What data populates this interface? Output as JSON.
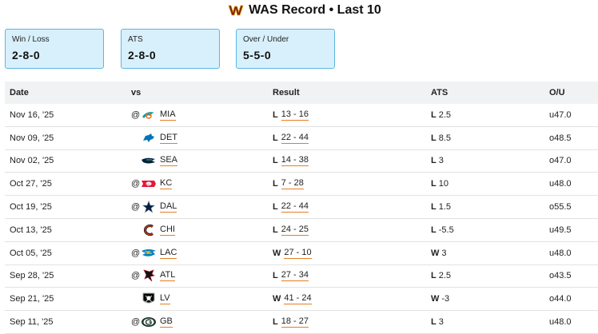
{
  "header": {
    "team": "WAS",
    "title": "WAS Record • Last 10",
    "logo_icon": "commanders-logo-icon"
  },
  "stats": [
    {
      "label": "Win / Loss",
      "value": "2-8-0"
    },
    {
      "label": "ATS",
      "value": "2-8-0"
    },
    {
      "label": "Over / Under",
      "value": "5-5-0"
    }
  ],
  "table": {
    "columns": [
      "Date",
      "vs",
      "Result",
      "ATS",
      "O/U"
    ],
    "rows": [
      {
        "date": "Nov 16, '25",
        "at": "@",
        "opp": "MIA",
        "logo": "dolphins-logo-icon",
        "result": "L",
        "score": "13 - 16",
        "ats_result": "L",
        "ats_line": "2.5",
        "ou": "u47.0"
      },
      {
        "date": "Nov 09, '25",
        "at": "",
        "opp": "DET",
        "logo": "lions-logo-icon",
        "result": "L",
        "score": "22 - 44",
        "ats_result": "L",
        "ats_line": "8.5",
        "ou": "o48.5"
      },
      {
        "date": "Nov 02, '25",
        "at": "",
        "opp": "SEA",
        "logo": "seahawks-logo-icon",
        "result": "L",
        "score": "14 - 38",
        "ats_result": "L",
        "ats_line": "3",
        "ou": "o47.0"
      },
      {
        "date": "Oct 27, '25",
        "at": "@",
        "opp": "KC",
        "logo": "chiefs-logo-icon",
        "result": "L",
        "score": "7 - 28",
        "ats_result": "L",
        "ats_line": "10",
        "ou": "u48.0"
      },
      {
        "date": "Oct 19, '25",
        "at": "@",
        "opp": "DAL",
        "logo": "cowboys-logo-icon",
        "result": "L",
        "score": "22 - 44",
        "ats_result": "L",
        "ats_line": "1.5",
        "ou": "o55.5"
      },
      {
        "date": "Oct 13, '25",
        "at": "",
        "opp": "CHI",
        "logo": "bears-logo-icon",
        "result": "L",
        "score": "24 - 25",
        "ats_result": "L",
        "ats_line": "-5.5",
        "ou": "u49.5"
      },
      {
        "date": "Oct 05, '25",
        "at": "@",
        "opp": "LAC",
        "logo": "chargers-logo-icon",
        "result": "W",
        "score": "27 - 10",
        "ats_result": "W",
        "ats_line": "3",
        "ou": "u48.0"
      },
      {
        "date": "Sep 28, '25",
        "at": "@",
        "opp": "ATL",
        "logo": "falcons-logo-icon",
        "result": "L",
        "score": "27 - 34",
        "ats_result": "L",
        "ats_line": "2.5",
        "ou": "o43.5"
      },
      {
        "date": "Sep 21, '25",
        "at": "",
        "opp": "LV",
        "logo": "raiders-logo-icon",
        "result": "W",
        "score": "41 - 24",
        "ats_result": "W",
        "ats_line": "-3",
        "ou": "o44.0"
      },
      {
        "date": "Sep 11, '25",
        "at": "@",
        "opp": "GB",
        "logo": "packers-logo-icon",
        "result": "L",
        "score": "18 - 27",
        "ats_result": "L",
        "ats_line": "3",
        "ou": "u48.0"
      }
    ]
  }
}
